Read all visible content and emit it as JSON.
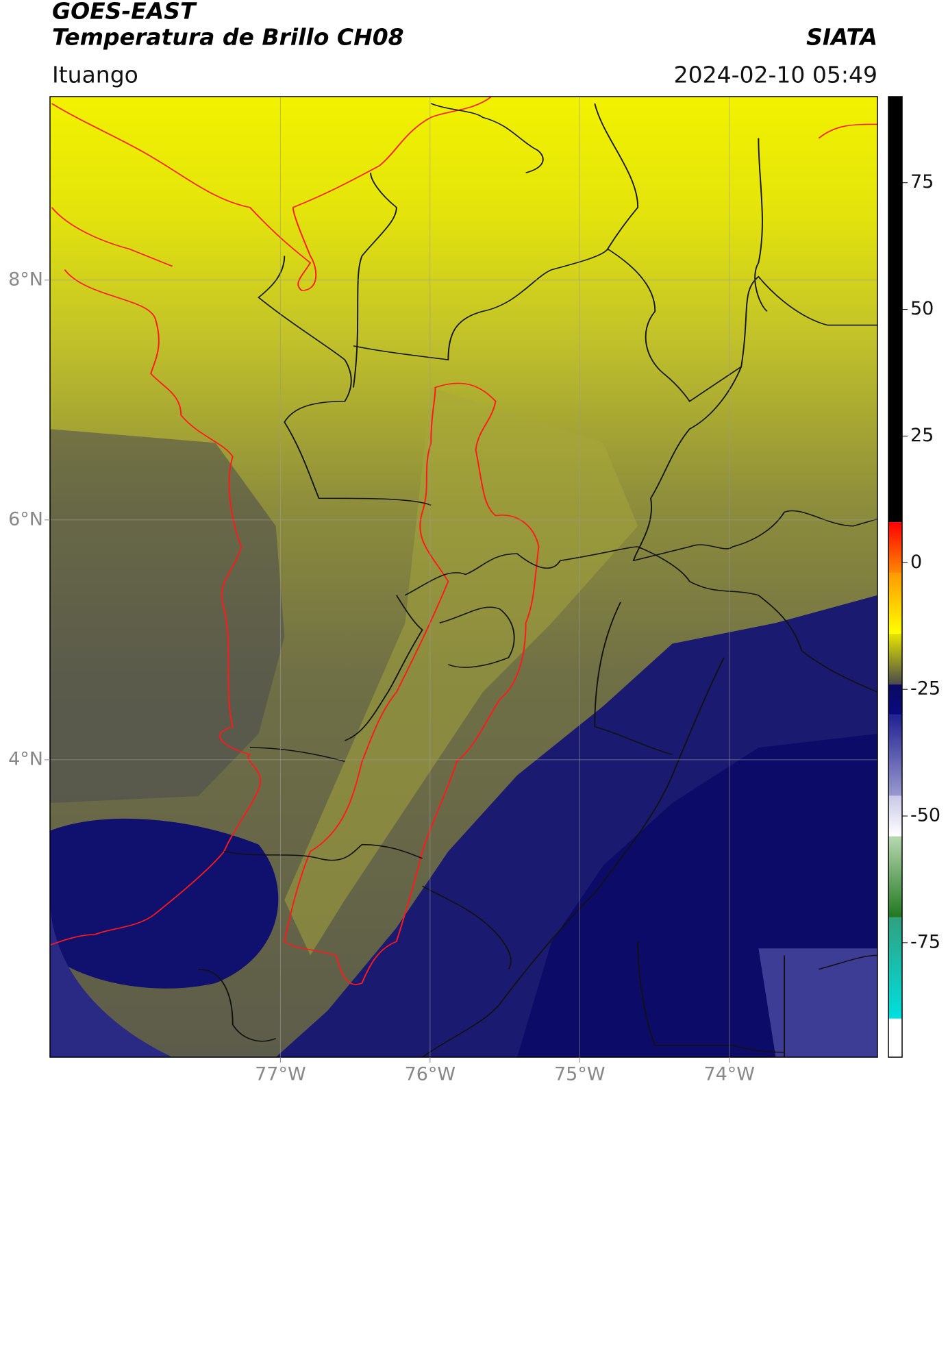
{
  "header": {
    "title": "GOES-EAST",
    "subtitle": "Temperatura de Brillo CH08",
    "source": "SIATA",
    "region": "Ituango",
    "timestamp": "2024-02-10 05:49"
  },
  "chart_data": {
    "type": "map",
    "xlim": [
      -78.54,
      -73.01
    ],
    "ylim": [
      1.52,
      9.53
    ],
    "xticks": [
      {
        "value": -77,
        "label": "77°W"
      },
      {
        "value": -76,
        "label": "76°W"
      },
      {
        "value": -75,
        "label": "75°W"
      },
      {
        "value": -74,
        "label": "74°W"
      }
    ],
    "yticks": [
      {
        "value": 8,
        "label": "8°N"
      },
      {
        "value": 6,
        "label": "6°N"
      },
      {
        "value": 4,
        "label": "4°N"
      }
    ],
    "grid": true,
    "colorbar": {
      "lim": [
        -97.6,
        92
      ],
      "ticks": [
        -75,
        -50,
        -25,
        0,
        25,
        50,
        75
      ],
      "segments": [
        {
          "from": 92,
          "to": 8,
          "colors": [
            "#000000",
            "#000000"
          ]
        },
        {
          "from": 8,
          "to": -2,
          "colors": [
            "#ff0000",
            "#ff8800"
          ]
        },
        {
          "from": -2,
          "to": -14,
          "colors": [
            "#ff9900",
            "#ffff00"
          ]
        },
        {
          "from": -14,
          "to": -24,
          "colors": [
            "#e6e600",
            "#4a4a4a"
          ]
        },
        {
          "from": -24,
          "to": -30,
          "colors": [
            "#0a0a60",
            "#0a0a80"
          ]
        },
        {
          "from": -30,
          "to": -46,
          "colors": [
            "#202090",
            "#9a9ad0"
          ]
        },
        {
          "from": -46,
          "to": -54,
          "colors": [
            "#c8c8e8",
            "#ffffff"
          ]
        },
        {
          "from": -54,
          "to": -70,
          "colors": [
            "#b8d8b0",
            "#207820"
          ]
        },
        {
          "from": -70,
          "to": -90,
          "colors": [
            "#30a080",
            "#00e0e0"
          ]
        },
        {
          "from": -90,
          "to": -97.6,
          "colors": [
            "#ffffff",
            "#ffffff"
          ]
        }
      ]
    }
  }
}
